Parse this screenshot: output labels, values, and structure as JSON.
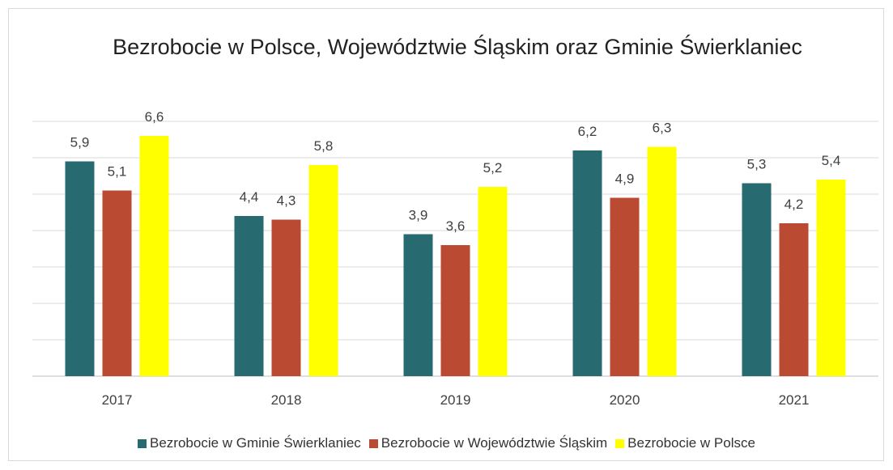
{
  "chart_data": {
    "type": "bar",
    "title": "Bezrobocie w Polsce, Województwie Śląskim oraz Gminie Świerklaniec",
    "categories": [
      "2017",
      "2018",
      "2019",
      "2020",
      "2021"
    ],
    "series": [
      {
        "name": "Bezrobocie w Gminie Świerklaniec",
        "color": "#276a70",
        "values": [
          5.9,
          4.4,
          3.9,
          6.2,
          5.3
        ],
        "value_labels": [
          "5,9",
          "4,4",
          "3,9",
          "6,2",
          "5,3"
        ]
      },
      {
        "name": "Bezrobocie w Województwie Śląskim",
        "color": "#bb4a32",
        "values": [
          5.1,
          4.3,
          3.6,
          4.9,
          4.2
        ],
        "value_labels": [
          "5,1",
          "4,3",
          "3,6",
          "4,9",
          "4,2"
        ]
      },
      {
        "name": "Bezrobocie w Polsce",
        "color": "#ffff00",
        "values": [
          6.6,
          5.8,
          5.2,
          6.3,
          5.4
        ],
        "value_labels": [
          "6,6",
          "5,8",
          "5,2",
          "6,3",
          "5,4"
        ]
      }
    ],
    "ylim": [
      0,
      7
    ],
    "yticks": [
      0,
      1,
      2,
      3,
      4,
      5,
      6,
      7
    ],
    "grid": true,
    "legend": "bottom"
  }
}
